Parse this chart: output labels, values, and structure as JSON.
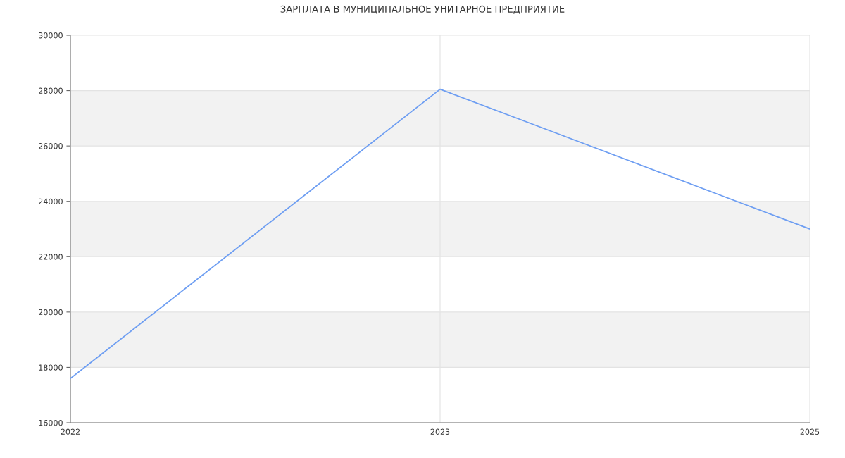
{
  "chart_data": {
    "type": "line",
    "title": "ЗАРПЛАТА В МУНИЦИПАЛЬНОЕ УНИТАРНОЕ ПРЕДПРИЯТИЕ",
    "categories": [
      "2022",
      "2023",
      "2025"
    ],
    "series": [
      {
        "color": "#6e9ef2",
        "values": [
          17600,
          28050,
          23000
        ]
      }
    ],
    "ylim": [
      16000,
      30000
    ],
    "yticks": [
      16000,
      18000,
      20000,
      22000,
      24000,
      26000,
      28000,
      30000
    ],
    "grid": true,
    "bands": [
      {
        "axis": "y",
        "from": 18000,
        "to": 20000,
        "color": "#f2f2f2"
      },
      {
        "axis": "y",
        "from": 22000,
        "to": 24000,
        "color": "#f2f2f2"
      },
      {
        "axis": "y",
        "from": 26000,
        "to": 28000,
        "color": "#f2f2f2"
      }
    ],
    "marker": "none",
    "line_style": "solid"
  }
}
